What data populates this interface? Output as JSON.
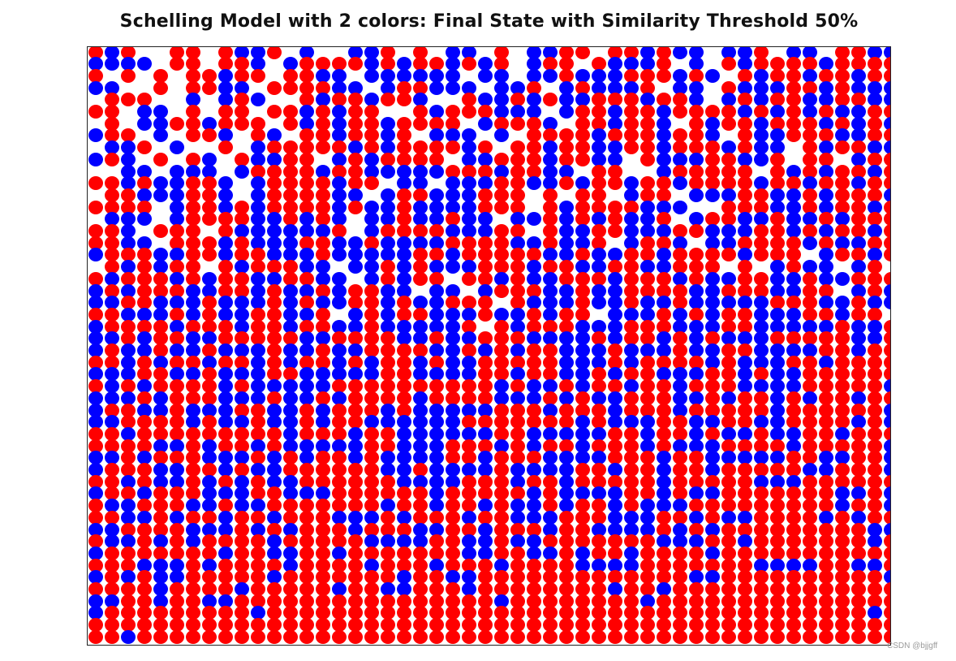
{
  "chart_data": {
    "type": "scatter",
    "title": "Schelling Model with 2 colors: Final State with Similarity Threshold 50%",
    "xlabel": "",
    "ylabel": "",
    "axes_visible": false,
    "grid": false,
    "legend": null,
    "grid_size": [
      50,
      50
    ],
    "colors": {
      "R": "#FF0000",
      "B": "#0000FF",
      "empty": "#FFFFFF"
    },
    "legend_key": {
      "R": "red agent",
      "B": "blue agent",
      ".": "empty cell"
    },
    "similarity_threshold_percent": 50,
    "rows": [
      "RBR..RR.RBBR.B..BBR.R.BB.R.BBRR.RRBRBB.BBR.BB.RRBB",
      "BBBB.RR.RRB.BRRRRBRBRRBRBR.BRR.RBBBR.B.RBRRRRBRRRR",
      "R.R.R.RRBRR.RRBB.BBBBBB.BB.BBRBBBRRRBRB.RBRRBRRBRR",
      "BB..R.RRBB.RRRRBB.BRRBBB.BBR.BRBBBR.BB.RBBBRRBRBBB",
      ".RRR..B.BRB..RBRRBRRB..RBBRBRBBRRRBRRB.BRBRRBBRRBB",
      "RR.BB.R.RR.RRBRBRR..RBRRRBBB.BRRBRRBRRRRBRBRBRBBRR",
      ".R.BBRRBRRR.RBRBRRBRRRR.BRRRB.RRBRRB.RBRRBRRRBRBRB",
      "BRR.B.RRB.RB.RRBRRBR.BBB.B.RRRRBRRRBRRB.RBBRRRBBRR",
      ".BBR.B..R.BRRRRRBRBRRRRBR.RRBRRBBRRBRRRBRBB.RBRRBB",
      "BRB.R.RB.RBBRR.BRBRRRR.BBRRRBRRBB.RBBBRRBBR.RR.BRR",
      "..BB.BBB.BRRRRBRRBBBBBRRRBRRBB.RR..BRRRRR.RBRBRRBR",
      "RRBRBBRRB.BRRRRBRR.BB.BBBRRBBRBRRBRRBRRRRBRRBRRBRR",
      ".RRBBBRRB.BRRRRBB.BRRBBBRRR.R.RR.BRR.BBBRRBBRBRRRB",
      "RRRR.BRRBRBRRRRBRBBRBBBBRRR.RBRRRRBBB..RRRBBRBRRBR",
      ".BBB.BRRRRBBRBRB.BBRBBRBB.BBRBRBRBBR.BRRBBRBBRBRRR",
      "RRB.RRR.RBBBBBBR.BRRRRBBBRR.RBBRRBBBRRBBBRRBRBRRBR",
      "RRBB.RRRBRBBBRRBBRBBBBRRRRBBRBBR.BRRB.BBRRRRBRBBRR",
      "BRRRBBRRBRRBBBRBBBBBRRBRRRRRBBRBBRRBRRRRBRRR.BRRBR",
      ".RBRBRR.RBRRRBB.BBRBRBBBRRRBRRBBRRBBRRR.R.BRBB.BR.",
      "RBRRRBRBRRBBRRBB.BRBRR.RRBRBBRRRBRRRBRBBRRBBRBBRRR",
      "BRBRRRBBRRBRBBRBRRBB.BB.BRRRBBRBBRRRRBBRRRBBRR.BRB",
      "BBRRBBBRBBBRBRBBRRBRBBRRR.RBBBRBBRBBRBBBBBRRRBBRBB",
      "RRBBBRBRBBRRBBR.BRBRRBBBRBBRBRR.BBBRBRBRRBBBRRBRR.",
      "BRRRRBRRRBRRBRRBBRBBBBBR.RBRRRBBBRRRBBBRRBBBBBRBBR",
      "BBRBRRBBRRRRRBBRRRRBBRBBRRRBBBBRBRRBRBRBBBRRRRRBBR",
      "BRBBRBBRBBBRBBRBBRRRRBBRBRBRRBBBRBBBRBBRRBBBBRRBRR",
      "RRBRBRRBRRBRBRRBRBRRBRBBRRRRRBBBRBRRRRBRBBBRRBRRRR",
      "BBBRRBBRBBBRRBBBBBRRBBBBRRBRRBBRBRRBBBRRBRBBRRRRRR",
      "RBRBRRRRBRBBBBBRRRRRRRRRRBRBBRBRRBRRBRRRBBBBRRRRRB",
      "BBBRBRRRBBBRBBRBRRRRBRRRRBBBRBRBBRRRBBRBRRBRBRRBRR",
      "BRRBBRBBBRRBBRBRRRBRBBBBBRRRBRRRBRRRBRRRRRBRRRRRRB",
      "BBRRRRBRBBRBBRBRRBBBBBBRRRRRRRBRBBBRRBBRRBBRRRRBRB",
      "RRBRRRRRRRRRBRRRBRRBBBBBBRRBBBBBRRBRRBRBBRBBRRBRRR",
      "RRRRBBRBRRBRBBBBBRRBBBRRRBRBRRBRRRBRBBBRRRRBRRRRRB",
      "BBRBRRRBBBRBRBRRBRBBBBRRBRRRBBBBRRRBRRBBBBBRRBBRRB",
      "BRRRBBRRBRBBRRRRRRBBRBBBBRBBBBRRBRRBRRBRRRRRBBRRRB",
      "RRBRBBRBRBRBBRRRRRRBBBBRRRBRRBRRRRRBRRRRRBBBRRRRRR",
      "BRRBRRRBBBRRBBBRRRRRRBRRRRRBRBBBBRRBRBBRRRRRRRBBRB",
      "RBBRRRBBRBBRRRRRRRBRRBRRBRBBRBRRBRBBBRRRRRRRRRBRRB",
      "RRBBRBRRBRRBRRRBBBRBRRRBRRBBBRRRBBBRRBRBBRRRRBRBRR",
      "BBRRRRBBBRBRBRRRBRRRBBRRBRRRBRRBBBBRBRBRRRRRRRRRBB",
      "RBBRBRBRRRRBRRRRRBBBBRRBBRBBRRRRRRRBBBRRBRRRRRRRBR",
      "BRRRRRRRBRRBBRRBRRRRRRRBBRRBBRBRRBRRRRBRRRRRRRRRRR",
      "RRRBBBRBRRRRBRRRRBRRRBRRRBRRRRBBBBRRRRRRRBBBBRRBBR",
      "BRBRBBRRRRRBRRRRRRRBRRBBRRRRRRRRRRRRRBBRRRRRRRRRRB",
      "RRRRBRRRRBRRRRRBRRBBRRRBRRRRRRRRBRRBRRRRRRRRRRRRRR",
      "BBRRBRRBBRRRRRRRRRRRRRRRRBRRRRRRRRBRRRRRRRRRRRRRRR",
      "BRRRRRRRRRBRRRRRRRRRRRRRRRRRRRRRRRRRRRRRRRRRRRRRBR",
      "RRRRRRRRRRRRRRRRRRRRRRRRRRRRRRRRRRRRRRRRRRRRRRRRRR",
      "RRBRRRRRRRRRRRRRRRRRRRRRRRRRRRRRRRRRRRRRRRRRRRRRRR"
    ]
  },
  "watermark": "CSDN @bjjgff"
}
